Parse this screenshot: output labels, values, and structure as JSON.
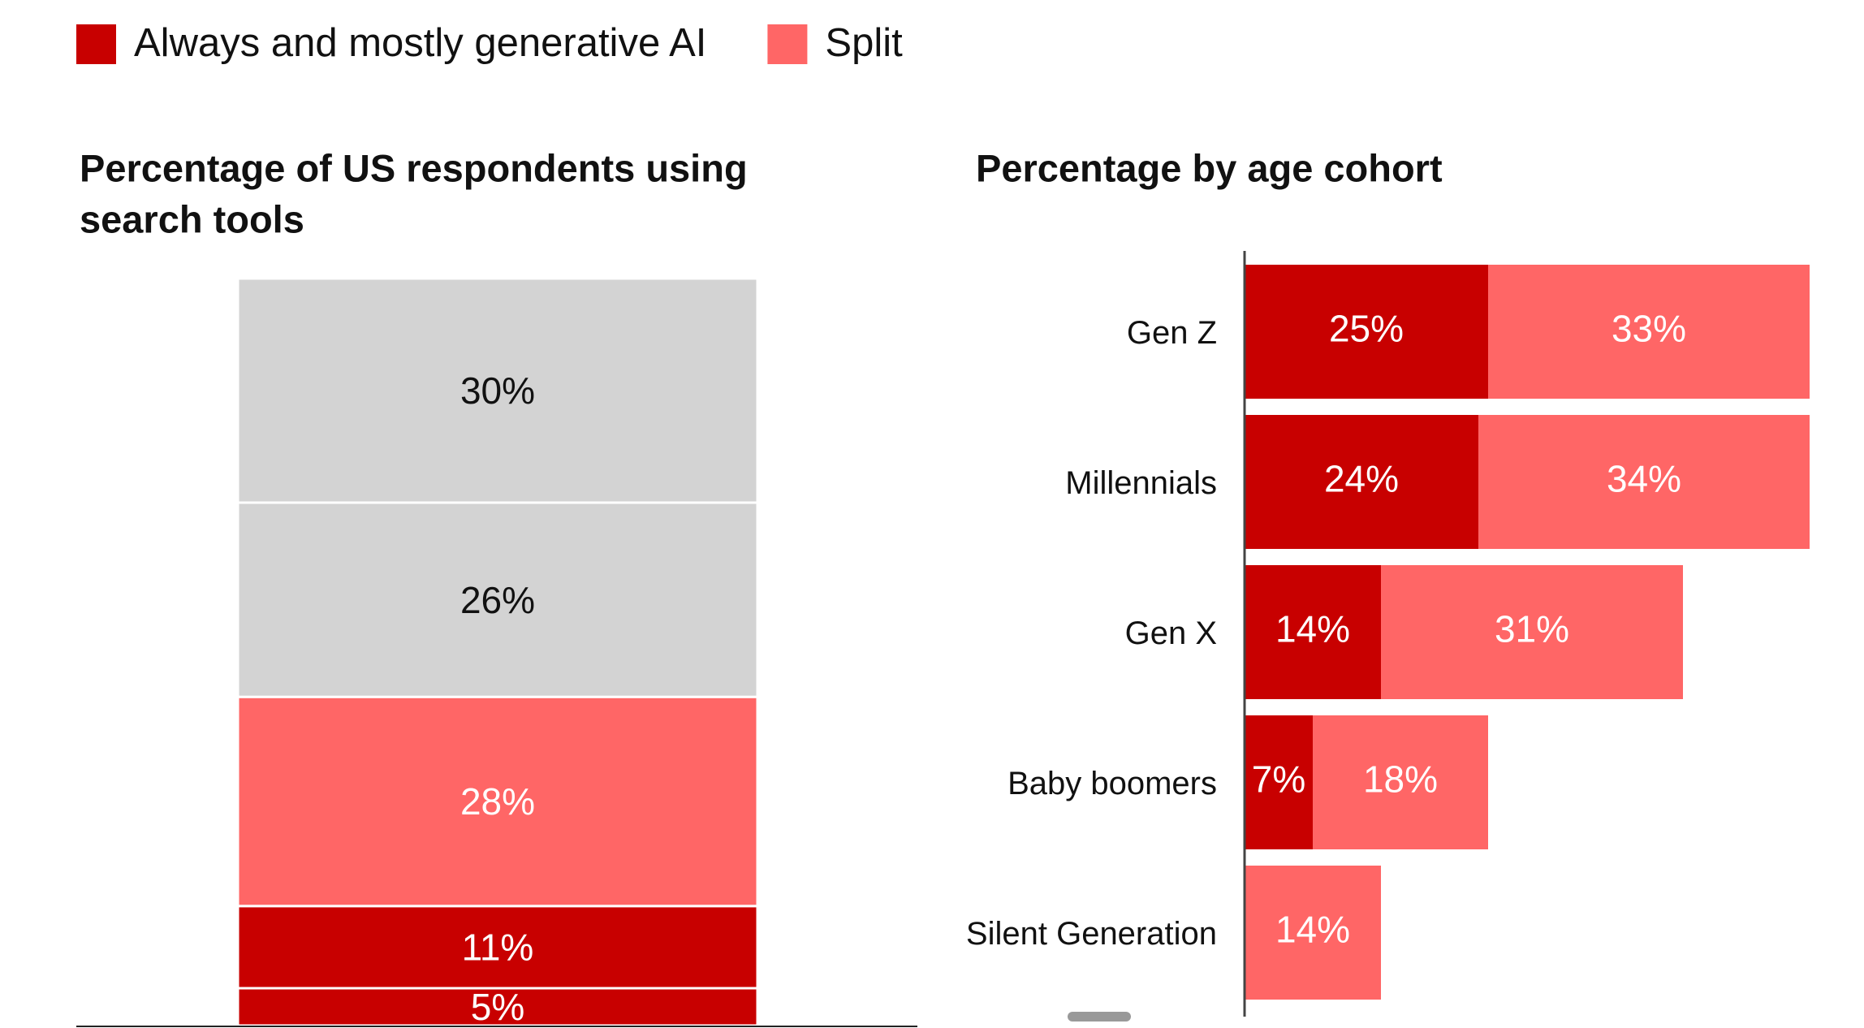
{
  "chart_data": [
    {
      "type": "stacked-column",
      "title_lines": [
        "Percentage of US respondents using",
        "search tools"
      ],
      "values": [
        5,
        11,
        28,
        26,
        30
      ],
      "value_labels": [
        "5%",
        "11%",
        "28%",
        "26%",
        "30%"
      ],
      "colors": [
        "#c80000",
        "#c80000",
        "#ff6666",
        "#d3d3d3",
        "#d3d3d3"
      ],
      "ylim": [
        0,
        100
      ]
    },
    {
      "type": "stacked-barh",
      "title": "Percentage by age cohort",
      "categories": [
        "Gen Z",
        "Millennials",
        "Gen X",
        "Baby boomers",
        "Silent Generation"
      ],
      "series": [
        {
          "name": "Always and mostly generative AI",
          "color": "#c80000",
          "values": [
            25,
            24,
            14,
            7,
            null
          ],
          "value_labels": [
            "25%",
            "24%",
            "14%",
            "7%",
            null
          ]
        },
        {
          "name": "Split",
          "color": "#ff6666",
          "values": [
            33,
            34,
            31,
            18,
            14
          ],
          "value_labels": [
            "33%",
            "34%",
            "31%",
            "18%",
            "14%"
          ]
        }
      ],
      "xlim": [
        0,
        60
      ]
    }
  ]
}
